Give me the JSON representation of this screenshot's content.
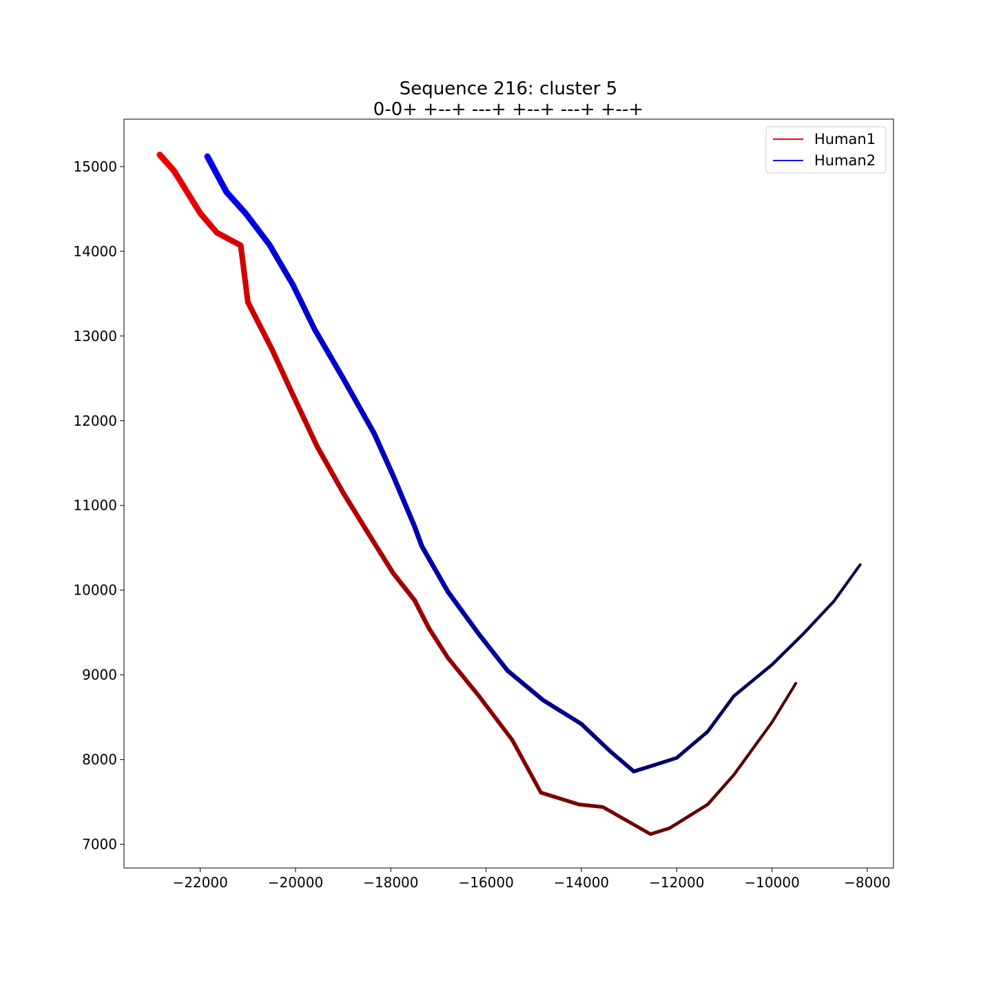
{
  "chart_data": {
    "type": "line",
    "title": "Sequence 216: cluster 5",
    "subtitle": "0-0+ +--+ ---+ +--+ ---+ +--+",
    "xlabel": "",
    "ylabel": "",
    "xlim": [
      -23600,
      -7450
    ],
    "ylim": [
      6720,
      15560
    ],
    "xticks": [
      -22000,
      -20000,
      -18000,
      -16000,
      -14000,
      -12000,
      -10000,
      -8000
    ],
    "xtick_labels": [
      "−22000",
      "−20000",
      "−18000",
      "−16000",
      "−14000",
      "−12000",
      "−10000",
      "−8000"
    ],
    "yticks": [
      7000,
      8000,
      9000,
      10000,
      11000,
      12000,
      13000,
      14000,
      15000
    ],
    "ytick_labels": [
      "7000",
      "8000",
      "9000",
      "10000",
      "11000",
      "12000",
      "13000",
      "14000",
      "15000"
    ],
    "grid": false,
    "legend": "top-right",
    "series": [
      {
        "name": "Human1",
        "legend_color": "#ff0000",
        "color_start": "#f00000",
        "color_end": "#4a0000",
        "width_start": 9,
        "width_end": 4,
        "points": [
          [
            -22850,
            15140
          ],
          [
            -22550,
            14950
          ],
          [
            -22000,
            14450
          ],
          [
            -21650,
            14220
          ],
          [
            -21150,
            14070
          ],
          [
            -21000,
            13400
          ],
          [
            -20500,
            12850
          ],
          [
            -20050,
            12300
          ],
          [
            -19550,
            11700
          ],
          [
            -19000,
            11150
          ],
          [
            -18450,
            10650
          ],
          [
            -17950,
            10200
          ],
          [
            -17500,
            9880
          ],
          [
            -17200,
            9550
          ],
          [
            -16800,
            9200
          ],
          [
            -16150,
            8750
          ],
          [
            -15450,
            8230
          ],
          [
            -14850,
            7610
          ],
          [
            -14050,
            7470
          ],
          [
            -13550,
            7440
          ],
          [
            -12550,
            7120
          ],
          [
            -12150,
            7190
          ],
          [
            -11350,
            7470
          ],
          [
            -10800,
            7820
          ],
          [
            -10000,
            8440
          ],
          [
            -9500,
            8900
          ]
        ]
      },
      {
        "name": "Human2",
        "legend_color": "#0000ff",
        "color_start": "#0000f0",
        "color_end": "#00003a",
        "width_start": 9,
        "width_end": 4,
        "points": [
          [
            -21850,
            15120
          ],
          [
            -21450,
            14700
          ],
          [
            -21050,
            14450
          ],
          [
            -20550,
            14080
          ],
          [
            -20050,
            13600
          ],
          [
            -19600,
            13080
          ],
          [
            -19000,
            12500
          ],
          [
            -18350,
            11850
          ],
          [
            -17950,
            11350
          ],
          [
            -17500,
            10750
          ],
          [
            -17350,
            10520
          ],
          [
            -16800,
            9980
          ],
          [
            -16150,
            9480
          ],
          [
            -15550,
            9050
          ],
          [
            -14800,
            8700
          ],
          [
            -14000,
            8420
          ],
          [
            -13400,
            8100
          ],
          [
            -12900,
            7860
          ],
          [
            -12500,
            7930
          ],
          [
            -12000,
            8020
          ],
          [
            -11350,
            8330
          ],
          [
            -10800,
            8750
          ],
          [
            -10000,
            9120
          ],
          [
            -9350,
            9480
          ],
          [
            -8700,
            9870
          ],
          [
            -8150,
            10300
          ]
        ]
      }
    ]
  }
}
